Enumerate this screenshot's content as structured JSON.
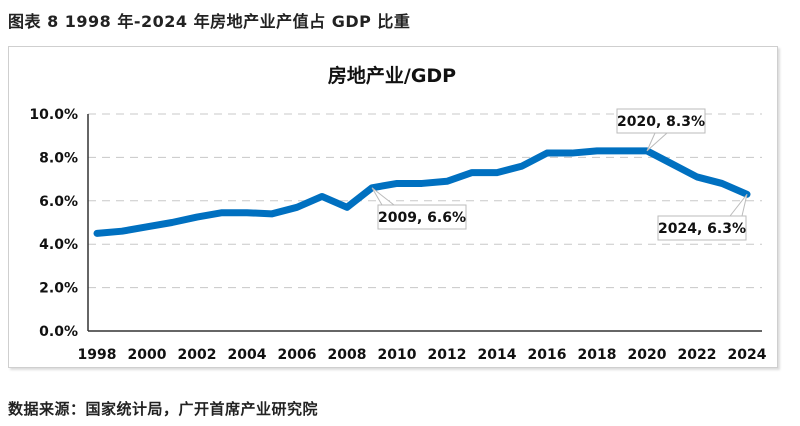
{
  "caption": "图表 8 1998 年-2024 年房地产业产值占 GDP 比重",
  "source": "数据来源：国家统计局，广开首席产业研究院",
  "chart_data": {
    "type": "line",
    "title": "房地产业/GDP",
    "xlabel": "",
    "ylabel": "",
    "x": [
      1998,
      1999,
      2000,
      2001,
      2002,
      2003,
      2004,
      2005,
      2006,
      2007,
      2008,
      2009,
      2010,
      2011,
      2012,
      2013,
      2014,
      2015,
      2016,
      2017,
      2018,
      2019,
      2020,
      2021,
      2022,
      2023,
      2024
    ],
    "series": [
      {
        "values": [
          4.5,
          4.6,
          4.8,
          5.0,
          5.25,
          5.45,
          5.45,
          5.4,
          5.7,
          6.2,
          5.7,
          6.6,
          6.8,
          6.8,
          6.9,
          7.3,
          7.3,
          7.6,
          8.2,
          8.2,
          8.3,
          8.3,
          8.3,
          7.7,
          7.1,
          6.8,
          6.3
        ],
        "color": "#0070C0"
      }
    ],
    "ylim": [
      0,
      10
    ],
    "yticks": [
      "0.0%",
      "2.0%",
      "4.0%",
      "6.0%",
      "8.0%",
      "10.0%"
    ],
    "xticks": [
      "1998",
      "2000",
      "2002",
      "2004",
      "2006",
      "2008",
      "2010",
      "2012",
      "2014",
      "2016",
      "2018",
      "2020",
      "2022",
      "2024"
    ],
    "grid": true,
    "legend": "none",
    "annotations": [
      {
        "x": 2009,
        "y": 6.6,
        "text": "2009, 6.6%"
      },
      {
        "x": 2020,
        "y": 8.3,
        "text": "2020, 8.3%"
      },
      {
        "x": 2024,
        "y": 6.3,
        "text": "2024, 6.3%"
      }
    ]
  }
}
